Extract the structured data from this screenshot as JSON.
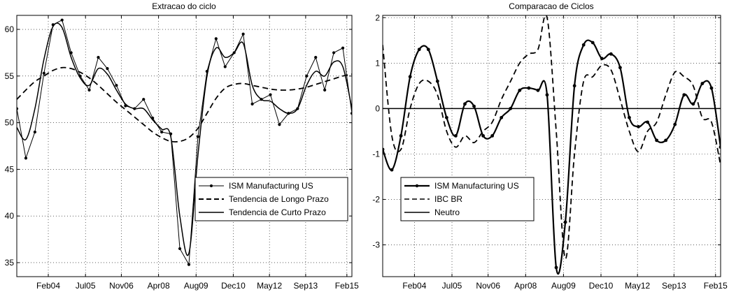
{
  "chart_data": [
    {
      "type": "line",
      "title": "Extracao do ciclo",
      "xlabel": "",
      "ylabel": "",
      "x_tick_labels": [
        "Feb04",
        "Jul05",
        "Nov06",
        "Apr08",
        "Aug09",
        "Dec10",
        "May12",
        "Sep13",
        "Feb15"
      ],
      "y_ticks": [
        35,
        40,
        45,
        50,
        55,
        60
      ],
      "xlim": [
        "2002-11",
        "2015-03"
      ],
      "ylim": [
        33.5,
        61.5
      ],
      "grid": true,
      "legend_position": "center-right",
      "x": [
        "2002-11",
        "2003-03",
        "2003-07",
        "2003-11",
        "2004-03",
        "2004-07",
        "2004-11",
        "2005-03",
        "2005-07",
        "2005-11",
        "2006-03",
        "2006-07",
        "2006-11",
        "2007-03",
        "2007-07",
        "2007-11",
        "2008-03",
        "2008-07",
        "2008-11",
        "2009-03",
        "2009-07",
        "2009-11",
        "2010-03",
        "2010-07",
        "2010-11",
        "2011-03",
        "2011-07",
        "2011-11",
        "2012-03",
        "2012-07",
        "2012-11",
        "2013-03",
        "2013-07",
        "2013-11",
        "2014-03",
        "2014-07",
        "2014-11",
        "2015-03"
      ],
      "series": [
        {
          "name": "ISM Manufacturing US",
          "style": "solid-marker",
          "values": [
            51.5,
            46.2,
            49.0,
            55.3,
            60.5,
            61.0,
            57.5,
            55.0,
            53.5,
            57.0,
            55.8,
            54.0,
            51.8,
            51.5,
            52.5,
            50.5,
            49.0,
            48.8,
            36.5,
            34.8,
            48.5,
            55.5,
            59.0,
            56.0,
            57.5,
            59.5,
            52.0,
            52.5,
            53.0,
            49.8,
            51.0,
            51.5,
            55.0,
            57.0,
            53.5,
            57.5,
            58.0,
            51.0
          ]
        },
        {
          "name": "Tendencia de Longo Prazo",
          "style": "dashed",
          "values": [
            52.5,
            53.5,
            54.4,
            55.0,
            55.6,
            55.9,
            55.8,
            55.4,
            54.8,
            54.0,
            53.1,
            52.2,
            51.4,
            50.6,
            49.8,
            49.0,
            48.4,
            48.0,
            48.0,
            48.4,
            49.4,
            51.0,
            52.6,
            53.7,
            54.1,
            54.2,
            54.0,
            53.8,
            53.6,
            53.5,
            53.5,
            53.6,
            53.8,
            54.1,
            54.4,
            54.7,
            55.0,
            55.2
          ]
        },
        {
          "name": "Tendencia de Curto Prazo",
          "style": "solid",
          "values": [
            49.5,
            48.2,
            51.5,
            56.8,
            60.3,
            60.2,
            57.0,
            54.8,
            54.0,
            55.8,
            55.2,
            53.5,
            52.0,
            51.5,
            51.5,
            50.3,
            49.3,
            48.5,
            40.0,
            36.0,
            46.5,
            55.0,
            58.0,
            57.0,
            57.5,
            58.5,
            54.0,
            52.5,
            52.3,
            51.5,
            51.0,
            51.5,
            54.0,
            55.5,
            55.0,
            56.5,
            56.0,
            51.5
          ]
        }
      ]
    },
    {
      "type": "line",
      "title": "Comparacao de Ciclos",
      "xlabel": "",
      "ylabel": "",
      "x_tick_labels": [
        "Feb04",
        "Jul05",
        "Nov06",
        "Apr08",
        "Aug09",
        "Dec10",
        "May12",
        "Sep13",
        "Feb15"
      ],
      "y_ticks": [
        -3,
        -2,
        -1,
        0,
        1,
        2
      ],
      "xlim": [
        "2002-11",
        "2015-03"
      ],
      "ylim": [
        -3.7,
        2.05
      ],
      "grid": true,
      "legend_position": "center-left",
      "x": [
        "2002-11",
        "2003-03",
        "2003-07",
        "2003-11",
        "2004-03",
        "2004-07",
        "2004-11",
        "2005-03",
        "2005-07",
        "2005-11",
        "2006-03",
        "2006-07",
        "2006-11",
        "2007-03",
        "2007-07",
        "2007-11",
        "2008-03",
        "2008-07",
        "2008-11",
        "2009-03",
        "2009-07",
        "2009-11",
        "2010-03",
        "2010-07",
        "2010-11",
        "2011-03",
        "2011-07",
        "2011-11",
        "2012-03",
        "2012-07",
        "2012-11",
        "2013-03",
        "2013-07",
        "2013-11",
        "2014-03",
        "2014-07",
        "2014-11",
        "2015-03"
      ],
      "series": [
        {
          "name": "ISM Manufacturing US",
          "style": "bold-marker",
          "values": [
            -0.9,
            -1.35,
            -0.6,
            0.7,
            1.3,
            1.3,
            0.6,
            -0.2,
            -0.6,
            0.1,
            0.05,
            -0.6,
            -0.6,
            -0.2,
            0.0,
            0.4,
            0.45,
            0.4,
            0.3,
            -3.5,
            -2.5,
            0.5,
            1.4,
            1.45,
            1.1,
            1.2,
            0.9,
            -0.2,
            -0.4,
            -0.3,
            -0.7,
            -0.7,
            -0.35,
            0.3,
            0.1,
            0.55,
            0.45,
            -0.85
          ]
        },
        {
          "name": "IBC BR",
          "style": "dashed",
          "values": [
            1.4,
            -0.6,
            -0.9,
            0.0,
            0.55,
            0.6,
            0.3,
            -0.5,
            -0.85,
            -0.6,
            -0.75,
            -0.5,
            -0.3,
            0.2,
            0.6,
            1.0,
            1.2,
            1.3,
            2.0,
            -0.5,
            -3.3,
            -1.0,
            0.6,
            0.7,
            0.95,
            0.85,
            0.2,
            -0.5,
            -0.95,
            -0.5,
            -0.3,
            0.3,
            0.8,
            0.7,
            0.5,
            -0.2,
            -0.3,
            -1.25
          ]
        },
        {
          "name": "Neutro",
          "style": "solid",
          "values": [
            0,
            0,
            0,
            0,
            0,
            0,
            0,
            0,
            0,
            0,
            0,
            0,
            0,
            0,
            0,
            0,
            0,
            0,
            0,
            0,
            0,
            0,
            0,
            0,
            0,
            0,
            0,
            0,
            0,
            0,
            0,
            0,
            0,
            0,
            0,
            0,
            0,
            0
          ]
        }
      ]
    }
  ]
}
